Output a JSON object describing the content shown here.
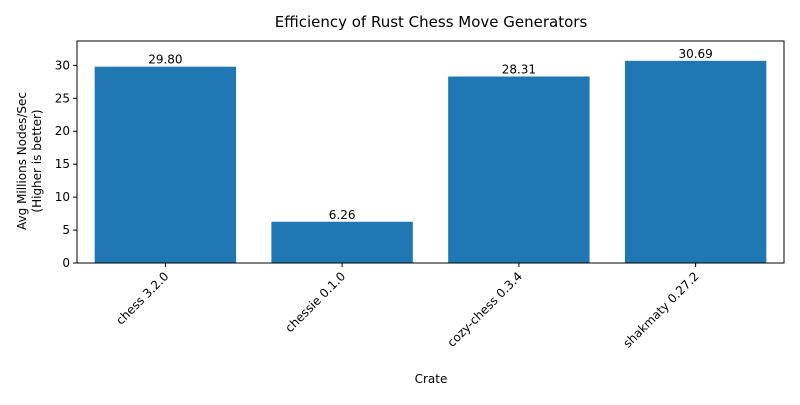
{
  "chart_data": {
    "type": "bar",
    "title": "Efficiency of Rust Chess Move Generators",
    "xlabel": "Crate",
    "ylabel": [
      "Avg Millions Nodes/Sec",
      "(Higher is better)"
    ],
    "categories": [
      "chess 3.2.0",
      "chessie 0.1.0",
      "cozy-chess 0.3.4",
      "shakmaty 0.27.2"
    ],
    "values": [
      29.8,
      6.26,
      28.31,
      30.69
    ],
    "data_labels": [
      "29.80",
      "6.26",
      "28.31",
      "30.69"
    ],
    "ylim": [
      0,
      33.7
    ],
    "yticks": [
      0,
      5,
      10,
      15,
      20,
      25,
      30
    ],
    "x_tick_rotation_deg": -45,
    "grid": false,
    "legend": "none",
    "bar_color": "#1f77b4"
  }
}
